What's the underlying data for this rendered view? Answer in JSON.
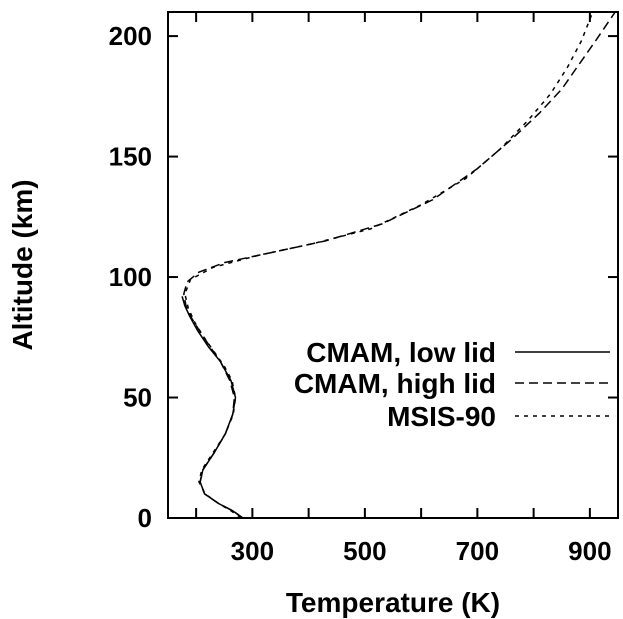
{
  "chart_data": {
    "type": "line",
    "xlabel": "Temperature (K)",
    "ylabel": "Altitude (km)",
    "xlim": [
      150,
      950
    ],
    "ylim": [
      0,
      210
    ],
    "xticks": [
      300,
      500,
      700,
      900
    ],
    "xtick_labels": [
      "300",
      "500",
      "700",
      "900"
    ],
    "yticks": [
      0,
      50,
      100,
      150,
      200
    ],
    "ytick_labels": [
      "0",
      "50",
      "100",
      "150",
      "200"
    ],
    "grid": false,
    "legend_position": "right",
    "series": [
      {
        "name": "CMAM, low lid",
        "style": "solid",
        "x": [
          283,
          265,
          240,
          215,
          207,
          212,
          232,
          252,
          265,
          270,
          262,
          243,
          222,
          202,
          188,
          180,
          175
        ],
        "y": [
          0,
          3,
          6,
          10,
          15,
          20,
          27,
          35,
          43,
          50,
          57,
          65,
          71,
          78,
          84,
          88,
          92
        ]
      },
      {
        "name": "CMAM, high lid",
        "style": "dashed",
        "x": [
          283,
          265,
          240,
          215,
          207,
          212,
          232,
          252,
          265,
          268,
          260,
          243,
          225,
          208,
          192,
          182,
          178,
          184,
          205,
          250,
          330,
          430,
          530,
          620,
          700,
          760,
          810,
          850,
          880,
          910,
          945
        ],
        "y": [
          0,
          3,
          6,
          10,
          15,
          20,
          27,
          35,
          43,
          50,
          57,
          65,
          71,
          77,
          83,
          88,
          93,
          98,
          102,
          106,
          110,
          115,
          122,
          132,
          145,
          157,
          168,
          178,
          188,
          198,
          210
        ]
      },
      {
        "name": "MSIS-90",
        "style": "dotted",
        "x": [
          280,
          262,
          240,
          216,
          205,
          210,
          230,
          252,
          266,
          270,
          264,
          250,
          232,
          214,
          198,
          186,
          180,
          190,
          230,
          310,
          410,
          510,
          600,
          680,
          740,
          790,
          830,
          860,
          885,
          905
        ],
        "y": [
          0,
          3,
          6,
          10,
          15,
          20,
          27,
          35,
          43,
          50,
          57,
          63,
          69,
          75,
          81,
          87,
          93,
          99,
          104,
          109,
          114,
          120,
          130,
          141,
          153,
          165,
          176,
          187,
          198,
          210
        ]
      }
    ]
  }
}
